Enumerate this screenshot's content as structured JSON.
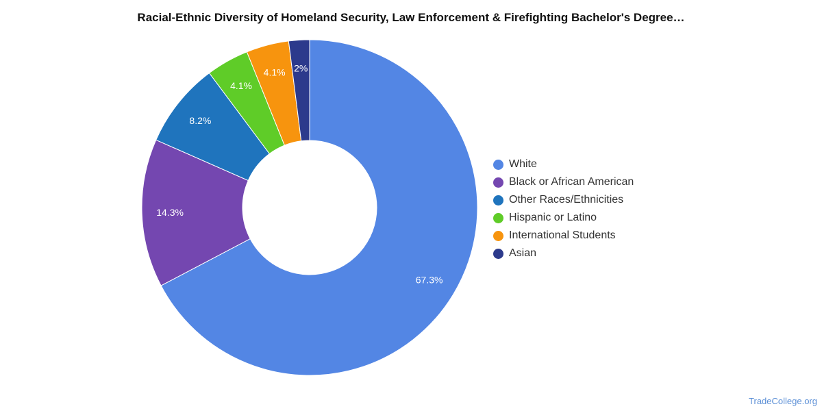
{
  "title": "Racial-Ethnic Diversity of Homeland Security, Law Enforcement & Firefighting Bachelor's Degree…",
  "source": "TradeCollege.org",
  "chart_data": {
    "type": "pie",
    "variant": "donut",
    "legend_position": "right",
    "slices": [
      {
        "name": "White",
        "value": 67.3,
        "label": "67.3%",
        "color": "#5386e4"
      },
      {
        "name": "Black or African American",
        "value": 14.3,
        "label": "14.3%",
        "color": "#7447b0"
      },
      {
        "name": "Other Races/Ethnicities",
        "value": 8.2,
        "label": "8.2%",
        "color": "#1f74bd"
      },
      {
        "name": "Hispanic or Latino",
        "value": 4.1,
        "label": "4.1%",
        "color": "#5fcc28"
      },
      {
        "name": "International Students",
        "value": 4.1,
        "label": "4.1%",
        "color": "#f7940e"
      },
      {
        "name": "Asian",
        "value": 2,
        "label": "2%",
        "color": "#2c3a8c"
      }
    ]
  }
}
